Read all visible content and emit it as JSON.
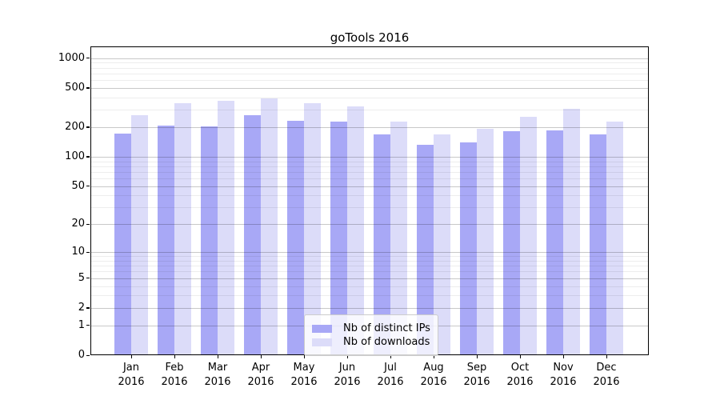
{
  "chart_data": {
    "type": "bar",
    "title": "goTools 2016",
    "categories": [
      "Jan",
      "Feb",
      "Mar",
      "Apr",
      "May",
      "Jun",
      "Jul",
      "Aug",
      "Sep",
      "Oct",
      "Nov",
      "Dec"
    ],
    "category_year": "2016",
    "series": [
      {
        "name": "Nb of distinct IPs",
        "color": "#a8a8f6",
        "values": [
          170,
          205,
          200,
          260,
          230,
          225,
          165,
          130,
          138,
          180,
          182,
          165
        ]
      },
      {
        "name": "Nb of downloads",
        "color": "#dcdcf9",
        "values": [
          260,
          345,
          365,
          385,
          345,
          320,
          225,
          165,
          190,
          250,
          300,
          225
        ]
      }
    ],
    "yscale": "log1p",
    "yticks": [
      0,
      1,
      2,
      5,
      10,
      20,
      50,
      100,
      200,
      500,
      1000
    ],
    "minor_yticks": [
      3,
      4,
      6,
      7,
      8,
      9,
      30,
      40,
      60,
      70,
      80,
      90,
      300,
      400,
      600,
      700,
      800,
      900
    ],
    "ylim": [
      0,
      1270
    ],
    "xlabel": "",
    "ylabel": "",
    "grid": true,
    "legend_position": "lower center"
  }
}
